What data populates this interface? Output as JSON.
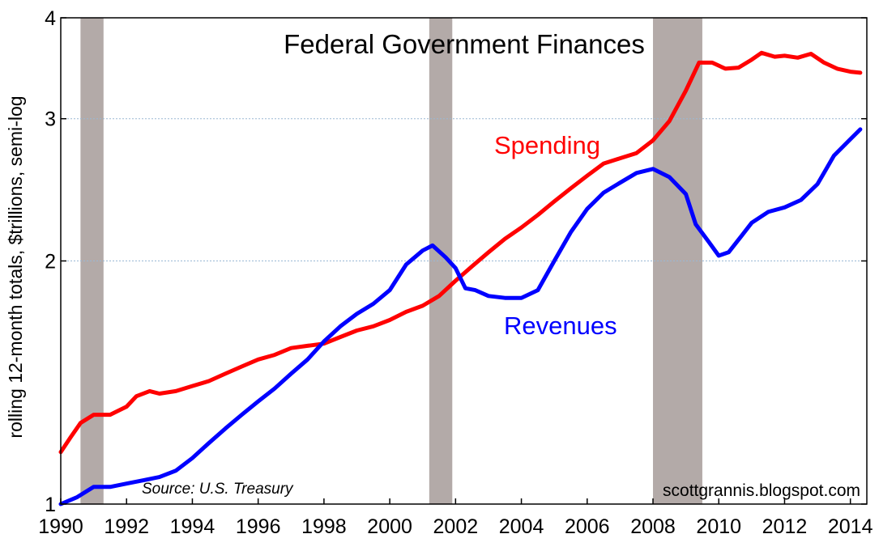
{
  "chart_data": {
    "type": "line",
    "title": "Federal Government Finances",
    "ylabel": "rolling 12-month totals, $trillions, semi-log",
    "xlabel": "",
    "x_ticks": [
      "1990",
      "1992",
      "1994",
      "1996",
      "1998",
      "2000",
      "2002",
      "2004",
      "2006",
      "2008",
      "2010",
      "2012",
      "2014"
    ],
    "y_ticks": [
      "1",
      "2",
      "3",
      "4"
    ],
    "xlim": [
      1990,
      2014.5
    ],
    "ylim": [
      1,
      4
    ],
    "y_scale": "log",
    "grid": "horizontal dotted lines at 2 and 3",
    "legend": "none (series labelled directly on the chart)",
    "recession_bands": [
      [
        1990.6,
        1991.3
      ],
      [
        2001.2,
        2001.9
      ],
      [
        2008.0,
        2009.5
      ]
    ],
    "recession_band_color": "#b3aaa8",
    "annotation_source": "Source: U.S. Treasury",
    "annotation_site": "scottgrannis.blogspot.com",
    "series": [
      {
        "name": "Spending",
        "color": "#ff0000",
        "points": [
          [
            1990.0,
            1.16
          ],
          [
            1990.3,
            1.21
          ],
          [
            1990.6,
            1.26
          ],
          [
            1991.0,
            1.29
          ],
          [
            1991.5,
            1.29
          ],
          [
            1992.0,
            1.32
          ],
          [
            1992.3,
            1.36
          ],
          [
            1992.7,
            1.38
          ],
          [
            1993.0,
            1.37
          ],
          [
            1993.5,
            1.38
          ],
          [
            1994.0,
            1.4
          ],
          [
            1994.5,
            1.42
          ],
          [
            1995.0,
            1.45
          ],
          [
            1995.5,
            1.48
          ],
          [
            1996.0,
            1.51
          ],
          [
            1996.5,
            1.53
          ],
          [
            1997.0,
            1.56
          ],
          [
            1997.5,
            1.57
          ],
          [
            1998.0,
            1.58
          ],
          [
            1998.5,
            1.61
          ],
          [
            1999.0,
            1.64
          ],
          [
            1999.5,
            1.66
          ],
          [
            2000.0,
            1.69
          ],
          [
            2000.5,
            1.73
          ],
          [
            2001.0,
            1.76
          ],
          [
            2001.5,
            1.81
          ],
          [
            2002.0,
            1.89
          ],
          [
            2002.5,
            1.97
          ],
          [
            2003.0,
            2.05
          ],
          [
            2003.5,
            2.13
          ],
          [
            2004.0,
            2.2
          ],
          [
            2004.5,
            2.28
          ],
          [
            2005.0,
            2.37
          ],
          [
            2005.5,
            2.46
          ],
          [
            2006.0,
            2.55
          ],
          [
            2006.5,
            2.64
          ],
          [
            2007.0,
            2.68
          ],
          [
            2007.5,
            2.72
          ],
          [
            2008.0,
            2.82
          ],
          [
            2008.5,
            2.98
          ],
          [
            2009.0,
            3.25
          ],
          [
            2009.4,
            3.52
          ],
          [
            2009.8,
            3.52
          ],
          [
            2010.2,
            3.46
          ],
          [
            2010.6,
            3.47
          ],
          [
            2011.0,
            3.55
          ],
          [
            2011.3,
            3.62
          ],
          [
            2011.7,
            3.58
          ],
          [
            2012.0,
            3.59
          ],
          [
            2012.4,
            3.57
          ],
          [
            2012.8,
            3.61
          ],
          [
            2013.2,
            3.52
          ],
          [
            2013.6,
            3.46
          ],
          [
            2014.0,
            3.43
          ],
          [
            2014.3,
            3.42
          ]
        ]
      },
      {
        "name": "Revenues",
        "color": "#0000ff",
        "points": [
          [
            1990.0,
            1.0
          ],
          [
            1990.5,
            1.02
          ],
          [
            1991.0,
            1.05
          ],
          [
            1991.5,
            1.05
          ],
          [
            1992.0,
            1.06
          ],
          [
            1992.5,
            1.07
          ],
          [
            1993.0,
            1.08
          ],
          [
            1993.5,
            1.1
          ],
          [
            1994.0,
            1.14
          ],
          [
            1994.5,
            1.19
          ],
          [
            1995.0,
            1.24
          ],
          [
            1995.5,
            1.29
          ],
          [
            1996.0,
            1.34
          ],
          [
            1996.5,
            1.39
          ],
          [
            1997.0,
            1.45
          ],
          [
            1997.5,
            1.51
          ],
          [
            1998.0,
            1.59
          ],
          [
            1998.5,
            1.66
          ],
          [
            1999.0,
            1.72
          ],
          [
            1999.5,
            1.77
          ],
          [
            2000.0,
            1.84
          ],
          [
            2000.5,
            1.98
          ],
          [
            2001.0,
            2.06
          ],
          [
            2001.3,
            2.09
          ],
          [
            2001.7,
            2.02
          ],
          [
            2002.0,
            1.96
          ],
          [
            2002.3,
            1.85
          ],
          [
            2002.6,
            1.84
          ],
          [
            2003.0,
            1.81
          ],
          [
            2003.5,
            1.8
          ],
          [
            2004.0,
            1.8
          ],
          [
            2004.5,
            1.84
          ],
          [
            2005.0,
            2.0
          ],
          [
            2005.5,
            2.17
          ],
          [
            2006.0,
            2.32
          ],
          [
            2006.5,
            2.43
          ],
          [
            2007.0,
            2.5
          ],
          [
            2007.5,
            2.57
          ],
          [
            2008.0,
            2.6
          ],
          [
            2008.5,
            2.54
          ],
          [
            2009.0,
            2.42
          ],
          [
            2009.3,
            2.22
          ],
          [
            2009.7,
            2.11
          ],
          [
            2010.0,
            2.03
          ],
          [
            2010.3,
            2.05
          ],
          [
            2010.7,
            2.15
          ],
          [
            2011.0,
            2.23
          ],
          [
            2011.5,
            2.3
          ],
          [
            2012.0,
            2.33
          ],
          [
            2012.5,
            2.38
          ],
          [
            2013.0,
            2.49
          ],
          [
            2013.5,
            2.7
          ],
          [
            2014.0,
            2.83
          ],
          [
            2014.3,
            2.91
          ]
        ]
      }
    ]
  }
}
